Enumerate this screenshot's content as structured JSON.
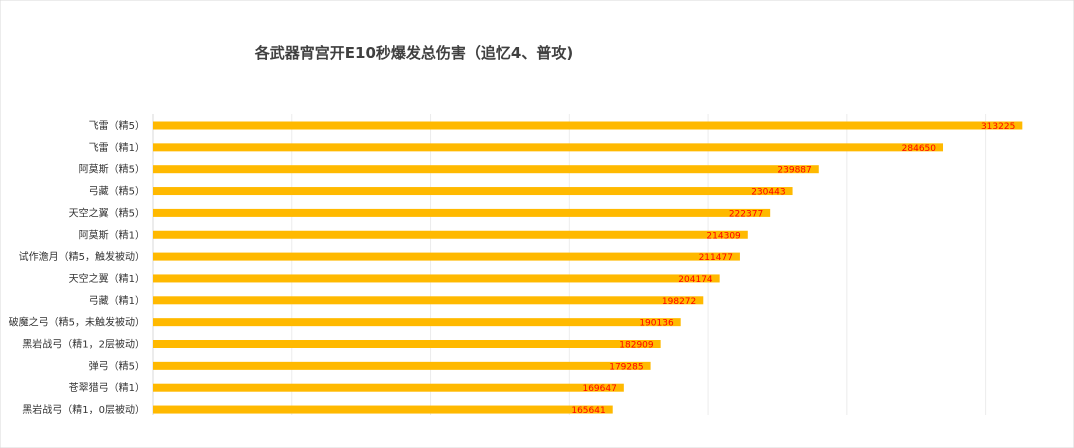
{
  "chart_data": {
    "type": "bar",
    "orientation": "horizontal",
    "title": "各武器宵宫开E10秒爆发总伤害（追忆4、普攻)",
    "xlabel": "",
    "ylabel": "",
    "xlim": [
      0,
      325000
    ],
    "grid": true,
    "legend": "none",
    "bar_color": "#FFB900",
    "label_color": "#FF0000",
    "categories": [
      "飞雷（精5）",
      "飞雷（精1）",
      "阿莫斯（精5）",
      "弓藏（精5）",
      "天空之翼（精5）",
      "阿莫斯（精1）",
      "试作澹月（精5，触发被动）",
      "天空之翼（精1）",
      "弓藏（精1）",
      "破魔之弓（精5，未触发被动）",
      "黑岩战弓（精1，2层被动）",
      "弹弓（精5）",
      "苍翠猎弓（精1）",
      "黑岩战弓（精1，0层被动）"
    ],
    "values": [
      313225,
      284650,
      239887,
      230443,
      222377,
      214309,
      211477,
      204174,
      198272,
      190136,
      182909,
      179285,
      169647,
      165641
    ],
    "value_labels": [
      "313225",
      "284650",
      "239887",
      "230443",
      "222377",
      "214309",
      "211477",
      "204174",
      "198272",
      "190136",
      "182909",
      "179285",
      "169647",
      "165641"
    ]
  }
}
